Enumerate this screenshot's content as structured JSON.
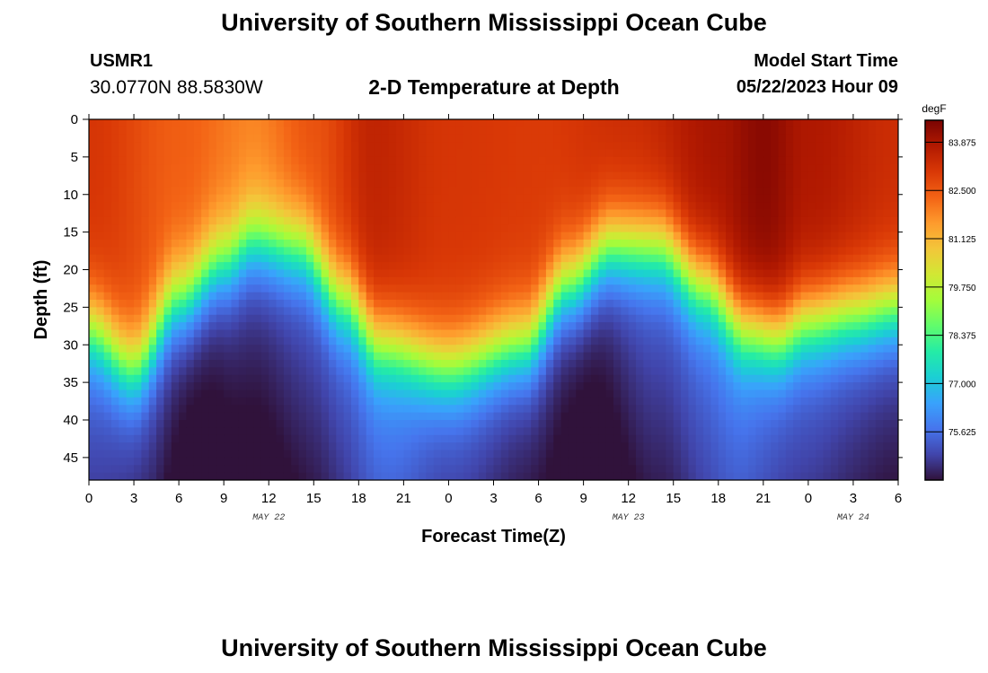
{
  "page": {
    "title_top": "University of Southern Mississippi Ocean Cube",
    "title_bottom": "University of Southern Mississippi Ocean Cube",
    "station_id": "USMR1",
    "coordinates": "30.0770N  88.5830W",
    "plot_title": "2-D Temperature at Depth",
    "model_start_label": "Model Start Time",
    "model_start_value": "05/22/2023 Hour 09"
  },
  "chart_data": {
    "type": "heatmap",
    "title": "2-D Temperature at Depth",
    "xlabel": "Forecast Time(Z)",
    "ylabel": "Depth (ft)",
    "x_hours_range": [
      0,
      54
    ],
    "x_tick_hours": [
      0,
      3,
      6,
      9,
      12,
      15,
      18,
      21,
      24,
      27,
      30,
      33,
      36,
      39,
      42,
      45,
      48,
      51,
      54
    ],
    "x_tick_labels": [
      "0",
      "3",
      "6",
      "9",
      "12",
      "15",
      "18",
      "21",
      "0",
      "3",
      "6",
      "9",
      "12",
      "15",
      "18",
      "21",
      "0",
      "3",
      "6"
    ],
    "date_labels": [
      {
        "hour": 12,
        "text": "MAY 22"
      },
      {
        "hour": 36,
        "text": "MAY 23"
      },
      {
        "hour": 51,
        "text": "MAY 24"
      }
    ],
    "y_range_ft": [
      0,
      48
    ],
    "y_ticks": [
      0,
      5,
      10,
      15,
      20,
      25,
      30,
      35,
      40,
      45
    ],
    "colorbar": {
      "unit": "degF",
      "min": 74.25,
      "max": 84.5,
      "ticks": [
        "83.875",
        "82.500",
        "81.125",
        "79.750",
        "78.375",
        "77.000",
        "75.625"
      ],
      "colors": [
        "#30123b",
        "#4145ab",
        "#4675ed",
        "#39a2fc",
        "#1bcfd4",
        "#24eca6",
        "#61fc6c",
        "#a4fc3b",
        "#d1e834",
        "#f3c63a",
        "#fe9b2d",
        "#f36315",
        "#d93806",
        "#b11901",
        "#7a0402"
      ]
    },
    "thermocline_depth_ft": [
      {
        "hour": 0,
        "depth": 28
      },
      {
        "hour": 3,
        "depth": 33
      },
      {
        "hour": 6,
        "depth": 24
      },
      {
        "hour": 9,
        "depth": 19
      },
      {
        "hour": 11,
        "depth": 16
      },
      {
        "hour": 14,
        "depth": 17
      },
      {
        "hour": 17,
        "depth": 24
      },
      {
        "hour": 19.5,
        "depth": 30
      },
      {
        "hour": 24,
        "depth": 33
      },
      {
        "hour": 29,
        "depth": 30
      },
      {
        "hour": 32,
        "depth": 22
      },
      {
        "hour": 35,
        "depth": 17
      },
      {
        "hour": 38,
        "depth": 17
      },
      {
        "hour": 41,
        "depth": 22
      },
      {
        "hour": 44,
        "depth": 28
      },
      {
        "hour": 46,
        "depth": 29
      },
      {
        "hour": 48,
        "depth": 27
      },
      {
        "hour": 51,
        "depth": 26
      },
      {
        "hour": 54,
        "depth": 25
      }
    ],
    "surface_temp_degF": [
      {
        "hour": 0,
        "temp": 83.1
      },
      {
        "hour": 6,
        "temp": 82.4
      },
      {
        "hour": 11,
        "temp": 81.9
      },
      {
        "hour": 15,
        "temp": 82.6
      },
      {
        "hour": 19,
        "temp": 83.5
      },
      {
        "hour": 24,
        "temp": 83.1
      },
      {
        "hour": 30,
        "temp": 83.0
      },
      {
        "hour": 36,
        "temp": 83.3
      },
      {
        "hour": 42,
        "temp": 83.9
      },
      {
        "hour": 45,
        "temp": 84.3
      },
      {
        "hour": 48,
        "temp": 83.8
      },
      {
        "hour": 54,
        "temp": 83.3
      }
    ],
    "bottom_temp_degF": [
      {
        "hour": 0,
        "temp": 75.4
      },
      {
        "hour": 4,
        "temp": 75.0
      },
      {
        "hour": 7,
        "temp": 74.5
      },
      {
        "hour": 11,
        "temp": 74.8
      },
      {
        "hour": 15,
        "temp": 75.2
      },
      {
        "hour": 20,
        "temp": 75.9
      },
      {
        "hour": 24,
        "temp": 75.3
      },
      {
        "hour": 30,
        "temp": 74.8
      },
      {
        "hour": 33,
        "temp": 74.5
      },
      {
        "hour": 38,
        "temp": 75.3
      },
      {
        "hour": 43,
        "temp": 75.9
      },
      {
        "hour": 47,
        "temp": 75.4
      },
      {
        "hour": 54,
        "temp": 74.9
      }
    ]
  }
}
